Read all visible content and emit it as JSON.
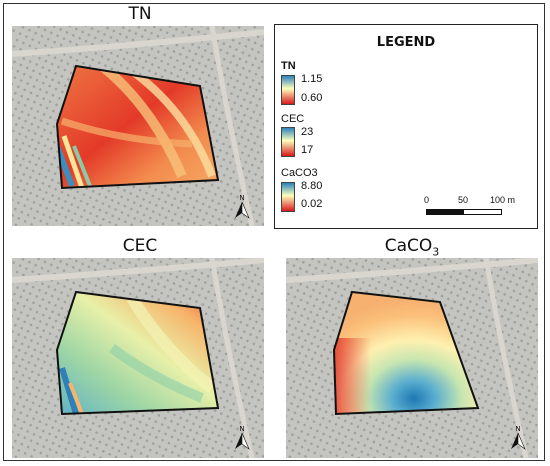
{
  "panels": {
    "tn": {
      "title": "TN"
    },
    "cec": {
      "title": "CEC"
    },
    "caco3": {
      "title_main": "CaCO",
      "title_sub": "3"
    }
  },
  "legend": {
    "title": "LEGEND",
    "items": [
      {
        "name": "TN",
        "max": "1.15",
        "min": "0.60"
      },
      {
        "name": "CEC",
        "max": "23",
        "min": "17"
      },
      {
        "name": "CaCO3",
        "max": "8.80",
        "min": "0.02"
      }
    ],
    "ramp_colors": {
      "high": "#2b83ba",
      "mid": "#ffffbf",
      "low": "#d7191c"
    }
  },
  "scale_bar": {
    "labels": [
      "0",
      "50",
      "100 m"
    ]
  },
  "north_arrow": {
    "label": "N"
  }
}
